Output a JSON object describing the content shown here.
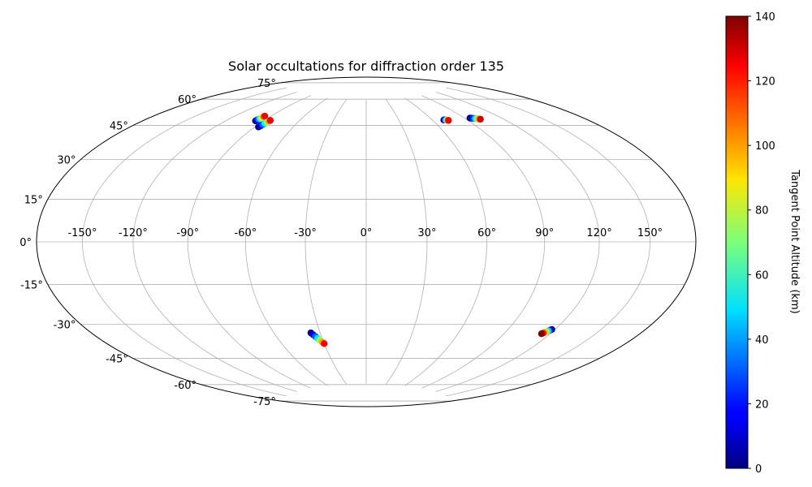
{
  "chart_data": {
    "type": "scatter",
    "title": "Solar occultations for diffraction order 135",
    "projection": "hammer",
    "xlim": [
      -180,
      180
    ],
    "ylim": [
      -90,
      90
    ],
    "grid": true,
    "x_ticks": [
      -150,
      -120,
      -90,
      -60,
      -30,
      0,
      30,
      60,
      90,
      120,
      150
    ],
    "x_tick_labels": [
      "-150°",
      "-120°",
      "-90°",
      "-60°",
      "-30°",
      "0°",
      "30°",
      "60°",
      "90°",
      "120°",
      "150°"
    ],
    "y_ticks": [
      -75,
      -60,
      -45,
      -30,
      -15,
      0,
      15,
      30,
      45,
      60,
      75
    ],
    "y_tick_labels": [
      "-75°",
      "-60°",
      "-45°",
      "-30°",
      "-15°",
      "0°",
      "15°",
      "30°",
      "45°",
      "60°",
      "75°"
    ],
    "colorbar": {
      "label": "Tangent Point Altitude (km)",
      "colormap": "jet",
      "range": [
        0,
        140
      ],
      "ticks": [
        0,
        20,
        40,
        60,
        80,
        100,
        120,
        140
      ],
      "tick_labels": [
        "0",
        "20",
        "40",
        "60",
        "80",
        "100",
        "120",
        "140"
      ],
      "placement": "right"
    },
    "series": [
      {
        "points": [
          [
            -96.5,
            58.5,
            0
          ],
          [
            -96.3,
            59.0,
            15
          ],
          [
            -96.1,
            59.5,
            35
          ],
          [
            -95.9,
            60.0,
            60
          ],
          [
            -95.7,
            60.5,
            85
          ],
          [
            -95.5,
            61.0,
            105
          ],
          [
            -95.3,
            61.4,
            125
          ]
        ]
      },
      {
        "points": [
          [
            -87.2,
            55.8,
            0
          ],
          [
            -86.8,
            56.5,
            15
          ],
          [
            -86.4,
            57.2,
            30
          ],
          [
            -86.0,
            57.9,
            50
          ],
          [
            -85.6,
            58.6,
            75
          ],
          [
            -85.3,
            59.2,
            100
          ],
          [
            -85.0,
            59.7,
            125
          ]
        ]
      },
      {
        "points": [
          [
            70.0,
            61.0,
            0
          ],
          [
            70.6,
            61.0,
            10
          ],
          [
            71.2,
            60.9,
            25
          ],
          [
            71.8,
            60.8,
            45
          ],
          [
            72.4,
            60.7,
            75
          ],
          [
            73.0,
            60.6,
            100
          ],
          [
            73.5,
            60.5,
            125
          ]
        ]
      },
      {
        "points": [
          [
            94.5,
            60.3,
            0
          ],
          [
            95.8,
            60.1,
            10
          ],
          [
            97.0,
            59.9,
            25
          ],
          [
            98.2,
            59.7,
            45
          ],
          [
            99.4,
            59.5,
            70
          ],
          [
            100.6,
            59.2,
            100
          ],
          [
            101.5,
            59.0,
            130
          ]
        ]
      },
      {
        "points": [
          [
            -36.0,
            -45.5,
            0
          ],
          [
            -35.0,
            -46.5,
            15
          ],
          [
            -34.0,
            -47.5,
            30
          ],
          [
            -33.0,
            -48.5,
            50
          ],
          [
            -32.0,
            -49.5,
            75
          ],
          [
            -31.0,
            -50.5,
            100
          ],
          [
            -30.0,
            -51.4,
            125
          ]
        ]
      },
      {
        "points": [
          [
            118.0,
            -39.0,
            0
          ],
          [
            117.4,
            -39.4,
            20
          ],
          [
            116.8,
            -39.8,
            45
          ],
          [
            116.2,
            -40.2,
            70
          ],
          [
            115.6,
            -40.6,
            95
          ],
          [
            115.0,
            -41.0,
            120
          ],
          [
            114.4,
            -41.4,
            140
          ]
        ]
      }
    ]
  }
}
